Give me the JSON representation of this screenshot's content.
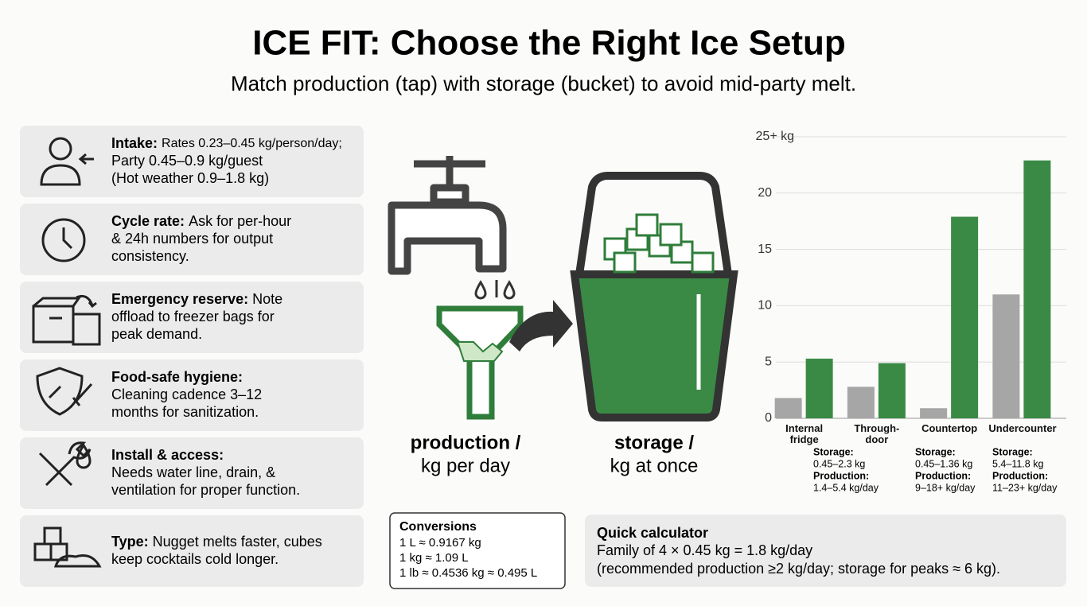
{
  "header": {
    "title": "ICE FIT: Choose the Right Ice Setup",
    "subtitle": "Match production (tap) with storage (bucket) to avoid mid-party melt."
  },
  "cards": [
    {
      "label": "Intake:",
      "lines": [
        "Rates 0.23–0.45 kg/person/day;",
        "Party 0.45–0.9 kg/guest",
        "(Hot weather 0.9–1.8 kg)"
      ]
    },
    {
      "label": "Cycle rate:",
      "lines": [
        "Ask for per-hour",
        "& 24h numbers for output",
        "consistency."
      ]
    },
    {
      "label": "Emergency reserve:",
      "lines": [
        "Note",
        "offload to freezer bags for",
        "peak demand."
      ]
    },
    {
      "label": "Food-safe hygiene:",
      "lines": [
        "",
        "Cleaning cadence 3–12",
        "months for sanitization."
      ]
    },
    {
      "label": "Install & access:",
      "lines": [
        "",
        "Needs water line, drain, &",
        "ventilation for proper function."
      ]
    },
    {
      "label": "Type:",
      "lines": [
        "Nugget melts faster, cubes",
        "keep cocktails cold longer."
      ]
    }
  ],
  "illustration": {
    "production": [
      "production /",
      "kg per day"
    ],
    "storage": [
      "storage /",
      "kg at once"
    ]
  },
  "conversions": {
    "title": "Conversions",
    "lines": [
      "1 L ≈ 0.9167 kg",
      "1 kg ≈ 1.09 L",
      "1 lb ≈ 0.4536 kg ≈ 0.495 L"
    ]
  },
  "calculator": {
    "title": "Quick calculator",
    "lines": [
      "Family of 4 × 0.45 kg = 1.8 kg/day",
      "(recommended production ≥2 kg/day; storage for peaks ≈ 6 kg)."
    ]
  },
  "chart_data": {
    "type": "bar",
    "categories": [
      "Internal fridge",
      "Through-door",
      "Countertop",
      "Undercounter"
    ],
    "series": [
      {
        "color": "#a6a6a6",
        "values": [
          1.8,
          2.8,
          0.9,
          11
        ]
      },
      {
        "color": "#3a8a45",
        "values": [
          5.3,
          4.9,
          17.9,
          22.9
        ]
      }
    ],
    "ylim": [
      0,
      25
    ],
    "yticks": [
      0,
      5,
      10,
      15,
      20,
      {
        "value": 25,
        "label": "25+ kg"
      }
    ],
    "grid": true,
    "annotations": [
      [
        "Storage:",
        "0.45–2.3 kg",
        "Production:",
        "1.4–5.4 kg/day"
      ],
      [
        "Storage:",
        "0.45–1.36 kg",
        "Production:",
        "9–18+ kg/day"
      ],
      [
        "Storage:",
        "5.4–11.8 kg",
        "Production:",
        "11–23+ kg/day"
      ]
    ]
  }
}
